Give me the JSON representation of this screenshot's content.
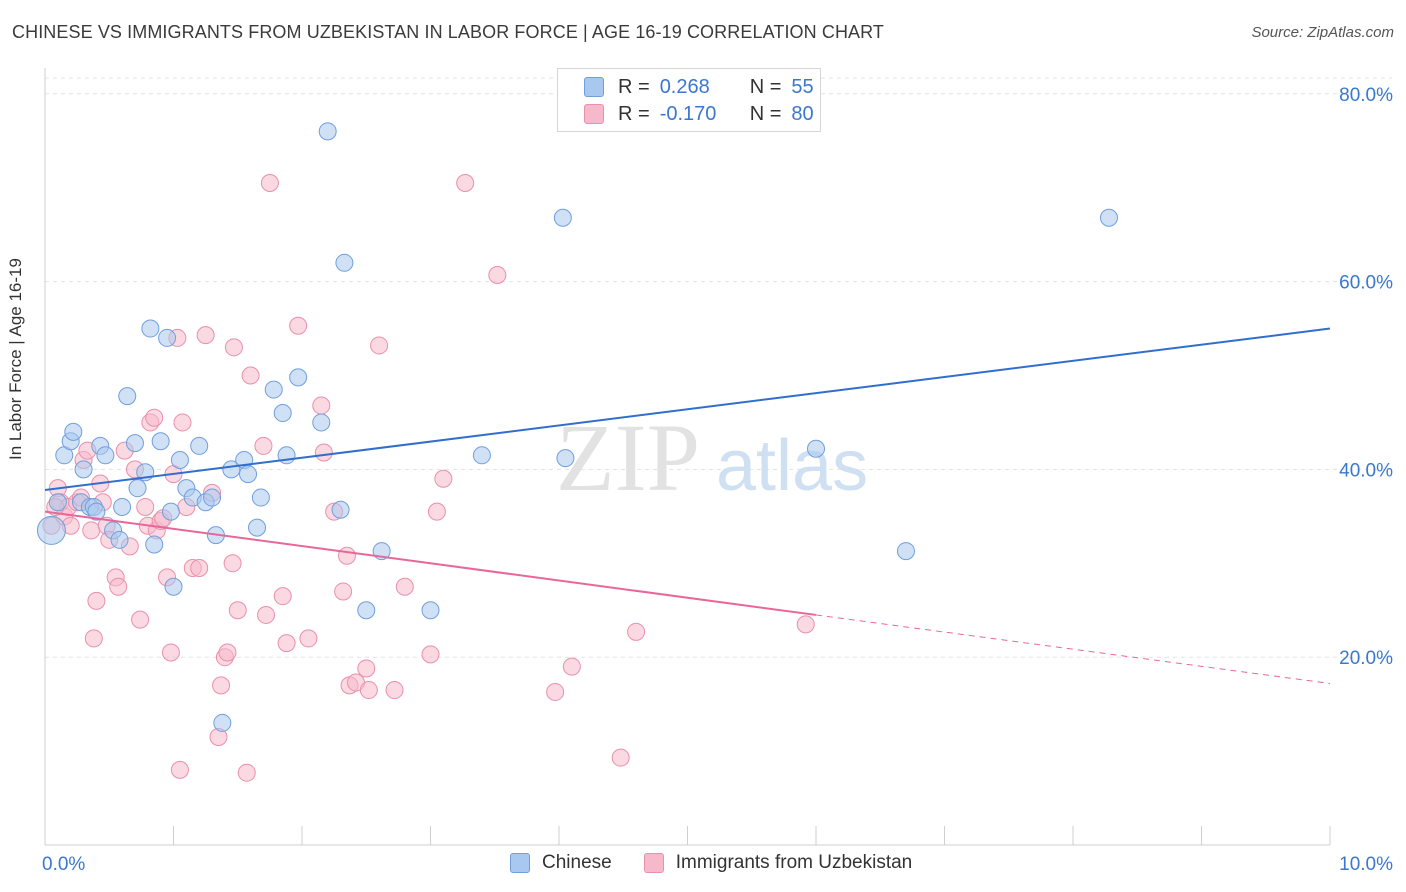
{
  "title": "CHINESE VS IMMIGRANTS FROM UZBEKISTAN IN LABOR FORCE | AGE 16-19 CORRELATION CHART",
  "source": "Source: ZipAtlas.com",
  "watermark": {
    "zip": "ZIP",
    "atlas": "atlas"
  },
  "colors": {
    "blue_fill": "#a9c8ef",
    "blue_stroke": "#6f9fdc",
    "blue_line": "#2f6fcf",
    "pink_fill": "#f6b9cc",
    "pink_stroke": "#eb8fac",
    "pink_line": "#e8679a",
    "axis_label": "#3a78d0"
  },
  "legend": {
    "chinese": {
      "r_label": "R =",
      "r_value": "0.268",
      "n_label": "N =",
      "n_value": "55"
    },
    "uzbek": {
      "r_label": "R =",
      "r_value": "-0.170",
      "n_label": "N =",
      "n_value": "80"
    }
  },
  "bottom_legend": {
    "series1": "Chinese",
    "series2": "Immigrants from Uzbekistan"
  },
  "chart_data": {
    "type": "scatter",
    "title": "CHINESE VS IMMIGRANTS FROM UZBEKISTAN IN LABOR FORCE | AGE 16-19 CORRELATION CHART",
    "xlabel": "",
    "ylabel": "In Labor Force | Age 16-19",
    "xlim": [
      0,
      10
    ],
    "ylim": [
      0,
      82
    ],
    "x_tick_labels": [
      "0.0%",
      "10.0%"
    ],
    "y_ticks": [
      20,
      40,
      60,
      80
    ],
    "y_tick_labels": [
      "20.0%",
      "40.0%",
      "60.0%",
      "80.0%"
    ],
    "grid": true,
    "series": [
      {
        "name": "Chinese",
        "trend": {
          "x": [
            0,
            10
          ],
          "y": [
            37.8,
            55.0
          ],
          "dashed_from": null
        },
        "points": [
          [
            0.05,
            33.5
          ],
          [
            0.1,
            36.5
          ],
          [
            0.15,
            41.5
          ],
          [
            0.2,
            43.0
          ],
          [
            0.22,
            44.0
          ],
          [
            0.28,
            36.5
          ],
          [
            0.3,
            40.0
          ],
          [
            0.35,
            36.0
          ],
          [
            0.38,
            36.0
          ],
          [
            0.4,
            35.5
          ],
          [
            0.43,
            42.5
          ],
          [
            0.47,
            41.5
          ],
          [
            0.53,
            33.5
          ],
          [
            0.58,
            32.5
          ],
          [
            0.6,
            36.0
          ],
          [
            0.64,
            47.8
          ],
          [
            0.7,
            42.8
          ],
          [
            0.72,
            38.0
          ],
          [
            0.78,
            39.7
          ],
          [
            0.82,
            55.0
          ],
          [
            0.85,
            32.0
          ],
          [
            0.9,
            43.0
          ],
          [
            0.95,
            54.0
          ],
          [
            0.98,
            35.5
          ],
          [
            1.0,
            27.5
          ],
          [
            1.05,
            41.0
          ],
          [
            1.1,
            38.0
          ],
          [
            1.15,
            37.0
          ],
          [
            1.2,
            42.5
          ],
          [
            1.25,
            36.5
          ],
          [
            1.3,
            37.0
          ],
          [
            1.33,
            33.0
          ],
          [
            1.38,
            13.0
          ],
          [
            1.45,
            40.0
          ],
          [
            1.55,
            41.0
          ],
          [
            1.58,
            39.5
          ],
          [
            1.65,
            33.8
          ],
          [
            1.68,
            37.0
          ],
          [
            1.78,
            48.5
          ],
          [
            1.85,
            46.0
          ],
          [
            1.88,
            41.5
          ],
          [
            1.97,
            49.8
          ],
          [
            2.15,
            45.0
          ],
          [
            2.2,
            76.0
          ],
          [
            2.3,
            35.7
          ],
          [
            2.33,
            62.0
          ],
          [
            2.5,
            25.0
          ],
          [
            2.62,
            31.3
          ],
          [
            3.0,
            25.0
          ],
          [
            3.4,
            41.5
          ],
          [
            4.05,
            41.2
          ],
          [
            4.03,
            66.8
          ],
          [
            6.0,
            42.2
          ],
          [
            6.7,
            31.3
          ],
          [
            8.28,
            66.8
          ]
        ]
      },
      {
        "name": "Immigrants from Uzbekistan",
        "trend": {
          "x": [
            0,
            6.0
          ],
          "y": [
            35.5,
            24.5
          ],
          "dashed_to": [
            10,
            17.2
          ]
        },
        "points": [
          [
            0.05,
            34.0
          ],
          [
            0.1,
            38.0
          ],
          [
            0.12,
            36.5
          ],
          [
            0.15,
            35.0
          ],
          [
            0.18,
            36.0
          ],
          [
            0.2,
            34.0
          ],
          [
            0.25,
            36.5
          ],
          [
            0.28,
            37.0
          ],
          [
            0.3,
            41.0
          ],
          [
            0.33,
            42.0
          ],
          [
            0.36,
            33.5
          ],
          [
            0.38,
            22.0
          ],
          [
            0.4,
            26.0
          ],
          [
            0.43,
            38.5
          ],
          [
            0.48,
            34.0
          ],
          [
            0.5,
            32.5
          ],
          [
            0.55,
            28.5
          ],
          [
            0.57,
            27.5
          ],
          [
            0.62,
            42.0
          ],
          [
            0.66,
            31.8
          ],
          [
            0.7,
            40.0
          ],
          [
            0.74,
            24.0
          ],
          [
            0.78,
            36.0
          ],
          [
            0.8,
            34.0
          ],
          [
            0.82,
            45.0
          ],
          [
            0.85,
            45.5
          ],
          [
            0.87,
            33.5
          ],
          [
            0.9,
            34.5
          ],
          [
            0.95,
            28.5
          ],
          [
            0.98,
            20.5
          ],
          [
            1.0,
            39.5
          ],
          [
            1.03,
            54.0
          ],
          [
            1.05,
            8.0
          ],
          [
            1.07,
            45.0
          ],
          [
            1.1,
            36.0
          ],
          [
            1.15,
            29.5
          ],
          [
            1.2,
            29.5
          ],
          [
            1.25,
            54.3
          ],
          [
            1.3,
            37.5
          ],
          [
            1.35,
            11.5
          ],
          [
            1.37,
            17.0
          ],
          [
            1.4,
            20.0
          ],
          [
            1.42,
            20.5
          ],
          [
            1.46,
            30.0
          ],
          [
            1.47,
            53.0
          ],
          [
            1.5,
            25.0
          ],
          [
            1.57,
            7.7
          ],
          [
            1.6,
            50.0
          ],
          [
            1.7,
            42.5
          ],
          [
            1.72,
            24.5
          ],
          [
            1.75,
            70.5
          ],
          [
            1.85,
            26.5
          ],
          [
            1.88,
            21.5
          ],
          [
            1.97,
            55.3
          ],
          [
            2.05,
            22.0
          ],
          [
            2.15,
            46.8
          ],
          [
            2.17,
            41.8
          ],
          [
            2.25,
            35.5
          ],
          [
            2.32,
            27.0
          ],
          [
            2.35,
            30.8
          ],
          [
            2.37,
            17.0
          ],
          [
            2.42,
            17.3
          ],
          [
            2.5,
            18.8
          ],
          [
            2.52,
            16.5
          ],
          [
            2.6,
            53.2
          ],
          [
            2.72,
            16.5
          ],
          [
            2.8,
            27.5
          ],
          [
            3.0,
            20.3
          ],
          [
            3.05,
            35.5
          ],
          [
            3.1,
            39.0
          ],
          [
            3.27,
            70.5
          ],
          [
            3.52,
            60.7
          ],
          [
            3.97,
            16.3
          ],
          [
            4.1,
            19.0
          ],
          [
            4.48,
            9.3
          ],
          [
            4.6,
            22.7
          ],
          [
            5.92,
            23.5
          ],
          [
            0.08,
            36.0
          ],
          [
            0.45,
            36.5
          ],
          [
            0.92,
            34.8
          ]
        ]
      }
    ]
  }
}
